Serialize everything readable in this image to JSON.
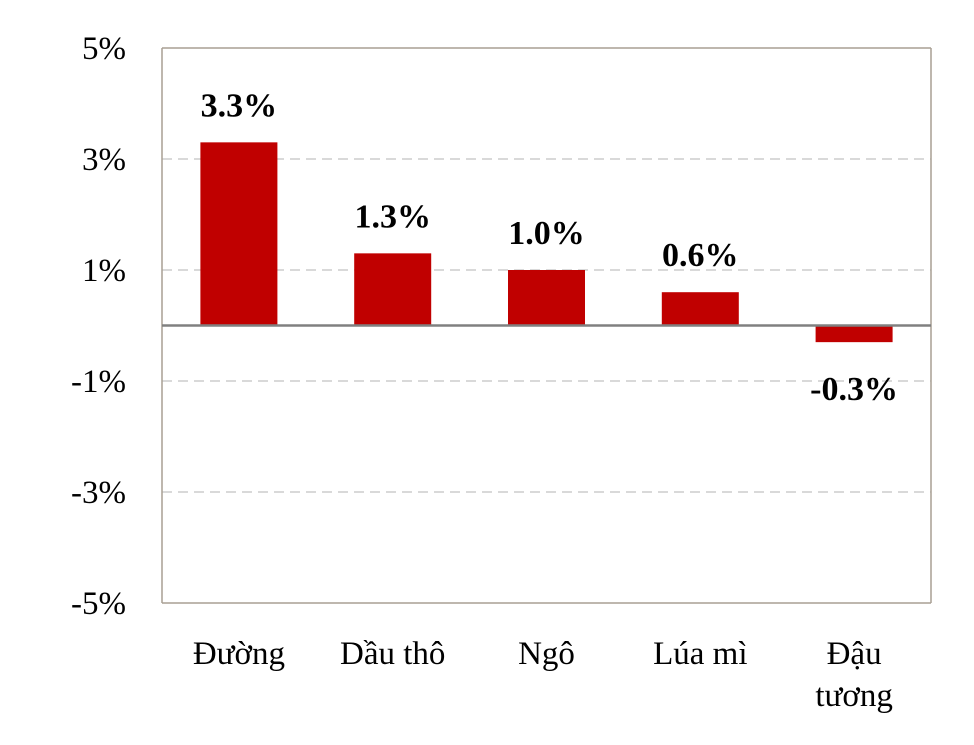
{
  "chart_data": {
    "type": "bar",
    "categories": [
      [
        "Đường"
      ],
      [
        "Dầu thô"
      ],
      [
        "Ngô"
      ],
      [
        "Lúa mì"
      ],
      [
        "Đậu",
        "tương"
      ]
    ],
    "values": [
      3.3,
      1.3,
      1.0,
      0.6,
      -0.3
    ],
    "data_labels": [
      "3.3%",
      "1.3%",
      "1.0%",
      "0.6%",
      "-0.3%"
    ],
    "y_ticks": [
      5,
      3,
      1,
      -1,
      -3,
      -5
    ],
    "y_tick_labels": [
      "5%",
      "3%",
      "1%",
      "-1%",
      "-3%",
      "-5%"
    ],
    "ylim": [
      -5,
      5
    ],
    "grid": "dashed horizontal",
    "bar_color": "#c00000",
    "zero_line_color": "#808080",
    "grid_color": "#d9d9d9",
    "frame_color": "#a89f94"
  }
}
